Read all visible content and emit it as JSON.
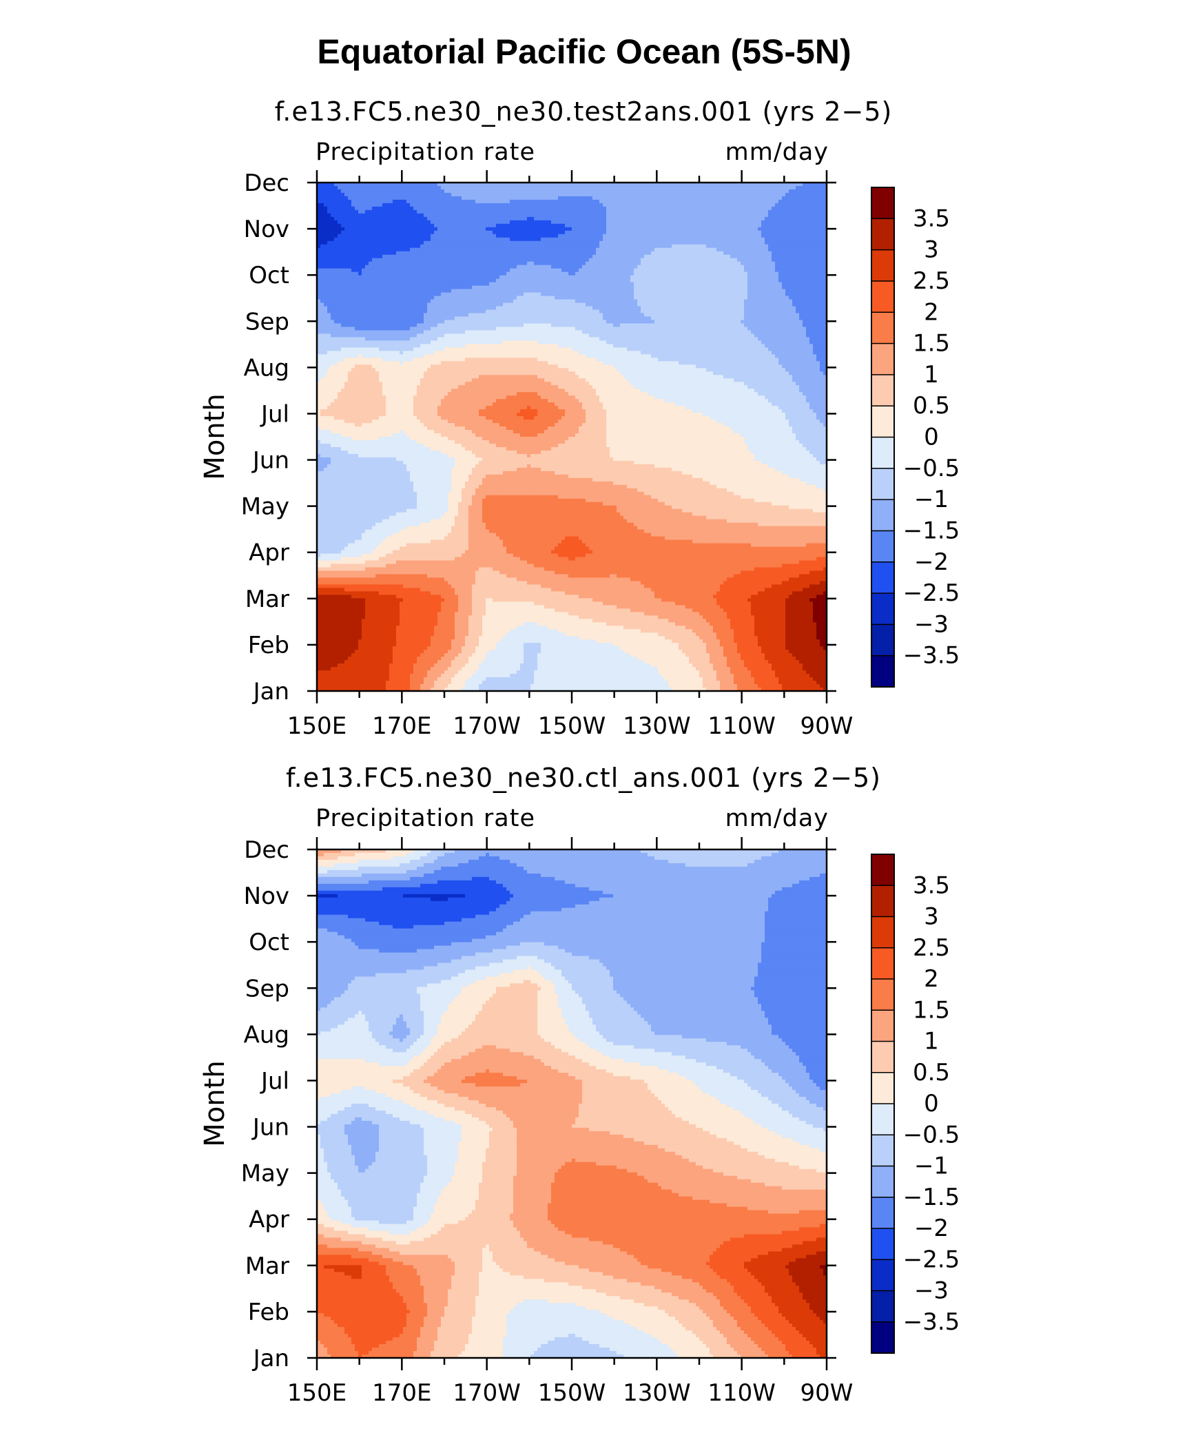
{
  "title": "Equatorial Pacific Ocean (5S-5N)",
  "colorbar": {
    "levels": [
      "3.5",
      "3",
      "2.5",
      "2",
      "1.5",
      "1",
      "0.5",
      "0",
      "−0.5",
      "−1",
      "−1.5",
      "−2",
      "−2.5",
      "−3",
      "−3.5"
    ],
    "colors": [
      "#800000",
      "#B22000",
      "#DC3B08",
      "#F85A24",
      "#FA7C48",
      "#FCA47E",
      "#FDCBB0",
      "#FDEAD8",
      "#DDEBFA",
      "#B9D0FA",
      "#8FB0F8",
      "#5A85F5",
      "#2050F0",
      "#0A2DC8",
      "#041FA8",
      "#000080"
    ]
  },
  "chart_data": [
    {
      "type": "heatmap",
      "title": "f.e13.FC5.ne30_ne30.test2ans.001 (yrs 2−5)",
      "left_label": "Precipitation rate",
      "right_label": "mm/day",
      "xlabel": "",
      "ylabel": "Month",
      "x_ticks": [
        "150E",
        "170E",
        "170W",
        "150W",
        "130W",
        "110W",
        "90W"
      ],
      "y_ticks": [
        "Jan",
        "Feb",
        "Mar",
        "Apr",
        "May",
        "Jun",
        "Jul",
        "Aug",
        "Sep",
        "Oct",
        "Nov",
        "Dec"
      ],
      "x_lon": [
        150,
        160,
        170,
        180,
        190,
        200,
        210,
        220,
        230,
        240,
        250,
        260,
        270
      ],
      "y_month": [
        1,
        2,
        3,
        4,
        5,
        6,
        7,
        8,
        9,
        10,
        11,
        12
      ],
      "values": [
        [
          2.8,
          2.8,
          2.3,
          0.4,
          -0.8,
          -0.5,
          -0.3,
          -0.3,
          -0.2,
          0.3,
          1.6,
          2.5,
          3.0
        ],
        [
          3.3,
          3.0,
          2.4,
          1.8,
          0.2,
          -0.6,
          -0.2,
          0.0,
          0.2,
          0.8,
          2.2,
          3.0,
          3.6
        ],
        [
          3.4,
          3.1,
          2.5,
          2.0,
          0.5,
          0.6,
          0.9,
          1.2,
          1.5,
          1.8,
          2.4,
          3.0,
          3.8
        ],
        [
          -0.8,
          -0.3,
          0.7,
          0.8,
          1.2,
          1.8,
          2.2,
          1.8,
          1.7,
          1.7,
          1.7,
          1.6,
          1.8
        ],
        [
          -0.5,
          -1.0,
          -0.7,
          -0.2,
          1.8,
          1.7,
          1.7,
          1.5,
          1.1,
          0.8,
          0.6,
          0.5,
          0.3
        ],
        [
          -1.2,
          -0.6,
          -0.5,
          -0.2,
          0.6,
          0.9,
          0.6,
          0.5,
          0.4,
          0.3,
          0.1,
          -0.2,
          -0.6
        ],
        [
          0.5,
          0.9,
          0.3,
          1.2,
          1.6,
          2.2,
          1.4,
          0.3,
          0.2,
          0.0,
          -0.1,
          -0.5,
          -1.2
        ],
        [
          -0.3,
          0.7,
          0.2,
          0.7,
          0.9,
          0.8,
          0.4,
          0.0,
          -0.4,
          -0.5,
          -0.7,
          -1.0,
          -1.6
        ],
        [
          -1.2,
          -2.0,
          -2.0,
          -1.0,
          -0.8,
          -0.6,
          -0.6,
          -1.1,
          -1.0,
          -0.9,
          -1.0,
          -1.3,
          -1.8
        ],
        [
          -1.8,
          -2.0,
          -1.6,
          -1.8,
          -1.7,
          -1.2,
          -1.5,
          -1.2,
          -0.7,
          -0.6,
          -0.9,
          -1.6,
          -2.0
        ],
        [
          -3.0,
          -2.2,
          -2.4,
          -1.9,
          -2.0,
          -2.3,
          -2.0,
          -1.4,
          -1.2,
          -1.2,
          -1.3,
          -1.8,
          -2.0
        ],
        [
          -2.2,
          -1.6,
          -1.8,
          -1.4,
          -1.1,
          -1.0,
          -1.3,
          -1.5,
          -1.2,
          -1.0,
          -1.1,
          -1.4,
          -1.6
        ]
      ]
    },
    {
      "type": "heatmap",
      "title": "f.e13.FC5.ne30_ne30.ctl_ans.001 (yrs 2−5)",
      "left_label": "Precipitation rate",
      "right_label": "mm/day",
      "xlabel": "",
      "ylabel": "Month",
      "x_ticks": [
        "150E",
        "170E",
        "170W",
        "150W",
        "130W",
        "110W",
        "90W"
      ],
      "y_ticks": [
        "Jan",
        "Feb",
        "Mar",
        "Apr",
        "May",
        "Jun",
        "Jul",
        "Aug",
        "Sep",
        "Oct",
        "Nov",
        "Dec"
      ],
      "x_lon": [
        150,
        160,
        170,
        180,
        190,
        200,
        210,
        220,
        230,
        240,
        250,
        260,
        270
      ],
      "y_month": [
        1,
        2,
        3,
        4,
        5,
        6,
        7,
        8,
        9,
        10,
        11,
        12
      ],
      "values": [
        [
          1.2,
          2.0,
          1.8,
          0.6,
          0.3,
          -0.5,
          -0.8,
          -0.6,
          -0.3,
          0.2,
          1.0,
          1.8,
          2.6
        ],
        [
          2.0,
          2.3,
          2.2,
          1.0,
          0.3,
          -0.3,
          -0.2,
          0.1,
          0.4,
          0.9,
          1.8,
          2.6,
          3.2
        ],
        [
          2.5,
          2.6,
          1.6,
          1.2,
          0.4,
          0.8,
          1.0,
          1.3,
          1.6,
          1.9,
          2.5,
          3.0,
          3.6
        ],
        [
          0.3,
          -0.6,
          -0.8,
          0.4,
          0.6,
          1.3,
          1.8,
          1.8,
          1.8,
          1.8,
          1.7,
          1.6,
          1.8
        ],
        [
          -0.3,
          -1.0,
          -0.9,
          -0.2,
          0.6,
          1.2,
          1.7,
          1.6,
          1.4,
          1.1,
          0.9,
          0.7,
          0.5
        ],
        [
          -0.5,
          -1.3,
          -0.7,
          -0.3,
          0.4,
          1.3,
          1.0,
          0.9,
          0.7,
          0.5,
          0.2,
          -0.2,
          -0.6
        ],
        [
          0.4,
          0.2,
          0.6,
          1.4,
          1.7,
          1.5,
          1.1,
          0.7,
          0.4,
          -0.1,
          -0.5,
          -1.0,
          -1.8
        ],
        [
          -0.5,
          -0.2,
          -1.3,
          0.3,
          0.8,
          0.6,
          0.0,
          -0.8,
          -1.0,
          -1.1,
          -1.2,
          -1.6,
          -2.0
        ],
        [
          -1.5,
          -0.8,
          -0.6,
          -0.3,
          0.4,
          0.8,
          -0.5,
          -1.0,
          -1.2,
          -1.3,
          -1.4,
          -1.8,
          -2.0
        ],
        [
          -1.0,
          -1.6,
          -1.8,
          -1.6,
          -1.4,
          -1.0,
          -1.2,
          -1.1,
          -1.0,
          -1.0,
          -1.2,
          -1.8,
          -2.0
        ],
        [
          -2.6,
          -2.4,
          -2.5,
          -2.6,
          -2.4,
          -1.8,
          -1.6,
          -1.5,
          -1.4,
          -1.3,
          -1.3,
          -1.6,
          -1.8
        ],
        [
          1.6,
          0.8,
          0.5,
          -0.8,
          -1.4,
          -1.2,
          -1.2,
          -1.1,
          -0.9,
          -0.8,
          -0.8,
          -1.0,
          -1.2
        ]
      ]
    }
  ]
}
